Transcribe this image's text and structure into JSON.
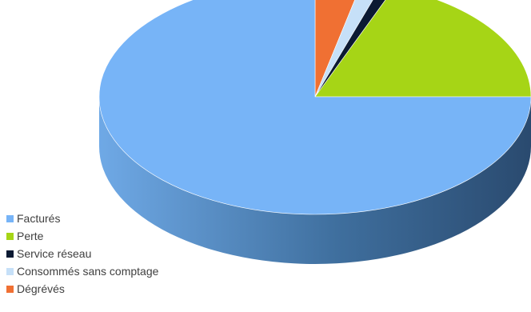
{
  "chart_data": {
    "type": "pie",
    "style": "3d",
    "title": "",
    "legend_position": "left-bottom",
    "categories": [
      "Facturés",
      "Perte",
      "Service réseau",
      "Consommés sans comptage",
      "Dégrévés"
    ],
    "values": [
      75.0,
      19.0,
      1.0,
      1.5,
      3.5
    ],
    "colors": [
      "#77b4f7",
      "#a6d516",
      "#0b1a33",
      "#c6e0f8",
      "#f07033"
    ]
  }
}
